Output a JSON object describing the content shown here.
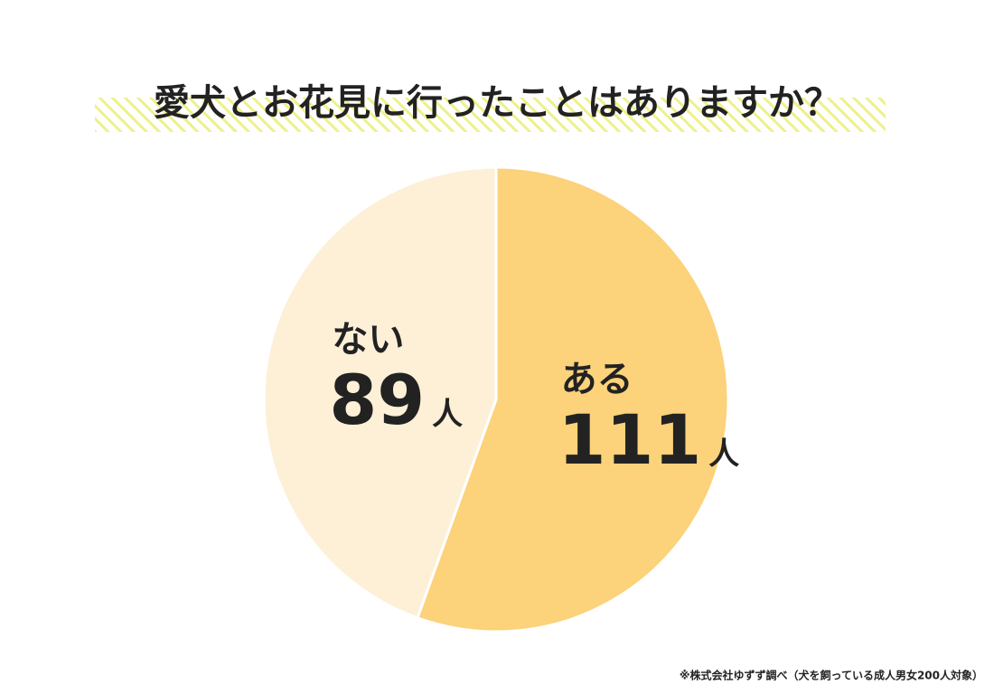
{
  "chart_data": {
    "type": "pie",
    "title": "愛犬とお花見に行ったことはありますか？",
    "categories": [
      "ある",
      "ない"
    ],
    "values": [
      111,
      89
    ],
    "value_unit": "人",
    "colors": [
      "#fcd27a",
      "#fdf0d7"
    ],
    "note": "※株式会社ゆずず調べ（犬を飼っている成人男女200人対象）"
  }
}
